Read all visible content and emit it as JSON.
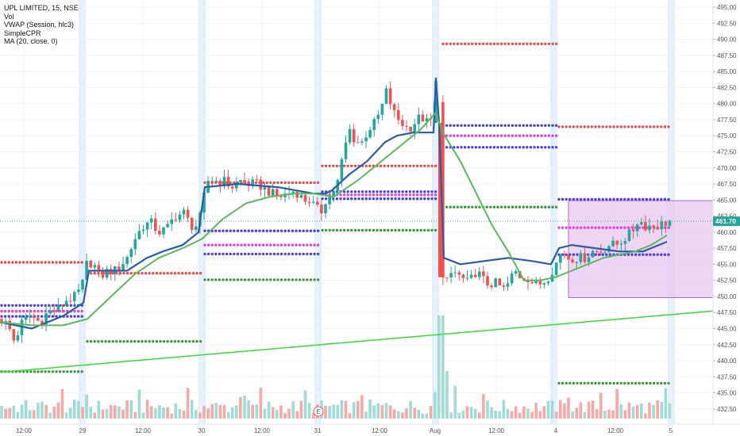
{
  "legend": {
    "title": "UPL LIMITED, 15, NSE",
    "items": [
      "Vol",
      "VWAP (Session, hlc3)",
      "SimpleCPR",
      "MA (20, close, 0)"
    ]
  },
  "colors": {
    "up": "#26a69a",
    "down": "#ef5350",
    "vwap": "#2a5caa",
    "ma": "#5cb85c",
    "trendline": "#33dd33",
    "cpr_red": "#e74c4c",
    "cpr_blue": "#4a3fe0",
    "cpr_magenta": "#e040e0",
    "cpr_green": "#3a9a3a",
    "box_fill": "#e6c3ee",
    "box_stroke": "#a050b0",
    "price_tag": "#26a69a"
  },
  "chart_data": {
    "type": "candlestick",
    "y_range": [
      431.0,
      495.5
    ],
    "y_ticks": [
      "432.50",
      "435.00",
      "437.50",
      "440.00",
      "442.50",
      "445.00",
      "447.50",
      "450.00",
      "452.50",
      "455.00",
      "457.50",
      "460.00",
      "462.50",
      "465.00",
      "467.50",
      "470.00",
      "472.50",
      "475.00",
      "477.50",
      "480.00",
      "482.50",
      "485.00",
      "487.50",
      "490.00",
      "492.50",
      "495.00"
    ],
    "x_labels": [
      "12:00",
      "29",
      "12:00",
      "30",
      "12:00",
      "31",
      "12:00",
      "Aug",
      "12:00",
      "4",
      "12:00",
      "5"
    ],
    "last_price": "461.70",
    "event_marker": "E",
    "price_path": [
      [
        0,
        446.5
      ],
      [
        10,
        445.5
      ],
      [
        18,
        443
      ],
      [
        28,
        446
      ],
      [
        38,
        447
      ],
      [
        50,
        446
      ],
      [
        60,
        447.5
      ],
      [
        72,
        448
      ],
      [
        84,
        449.5
      ],
      [
        96,
        450
      ],
      [
        104,
        452
      ],
      [
        110,
        455.5
      ],
      [
        118,
        455
      ],
      [
        126,
        453
      ],
      [
        136,
        454
      ],
      [
        146,
        454
      ],
      [
        160,
        456
      ],
      [
        170,
        459
      ],
      [
        180,
        461
      ],
      [
        190,
        461.5
      ],
      [
        200,
        460
      ],
      [
        210,
        460.5
      ],
      [
        220,
        462.5
      ],
      [
        232,
        463
      ],
      [
        240,
        461
      ],
      [
        250,
        461
      ],
      [
        256,
        465
      ],
      [
        262,
        468
      ],
      [
        272,
        468
      ],
      [
        282,
        468
      ],
      [
        292,
        467
      ],
      [
        302,
        468
      ],
      [
        312,
        467.5
      ],
      [
        322,
        467.5
      ],
      [
        332,
        467
      ],
      [
        342,
        466
      ],
      [
        352,
        465.5
      ],
      [
        362,
        466
      ],
      [
        372,
        466.5
      ],
      [
        382,
        465
      ],
      [
        390,
        465
      ],
      [
        396,
        464
      ],
      [
        404,
        463
      ],
      [
        410,
        465
      ],
      [
        418,
        466
      ],
      [
        426,
        468
      ],
      [
        432,
        472
      ],
      [
        440,
        476
      ],
      [
        448,
        474
      ],
      [
        456,
        474
      ],
      [
        464,
        476
      ],
      [
        472,
        477
      ],
      [
        480,
        479
      ],
      [
        486,
        482
      ],
      [
        492,
        480
      ],
      [
        498,
        478
      ],
      [
        506,
        477
      ],
      [
        514,
        476
      ],
      [
        522,
        477
      ],
      [
        530,
        478
      ],
      [
        538,
        477
      ],
      [
        544,
        477.5
      ],
      [
        548,
        480
      ],
      [
        552,
        475
      ],
      [
        556,
        453
      ],
      [
        562,
        452
      ],
      [
        570,
        454
      ],
      [
        580,
        453
      ],
      [
        590,
        452
      ],
      [
        600,
        454
      ],
      [
        612,
        452
      ],
      [
        624,
        452
      ],
      [
        636,
        451
      ],
      [
        648,
        454
      ],
      [
        656,
        453
      ],
      [
        664,
        453
      ],
      [
        672,
        452
      ],
      [
        682,
        452
      ],
      [
        690,
        453
      ],
      [
        700,
        455
      ],
      [
        708,
        457
      ],
      [
        716,
        456
      ],
      [
        726,
        456
      ],
      [
        736,
        456
      ],
      [
        746,
        457
      ],
      [
        756,
        457
      ],
      [
        766,
        458
      ],
      [
        776,
        458
      ],
      [
        786,
        459
      ],
      [
        796,
        460
      ],
      [
        804,
        462
      ],
      [
        812,
        461
      ],
      [
        820,
        461
      ],
      [
        830,
        461
      ],
      [
        842,
        461.7
      ]
    ],
    "vwap": [
      [
        0,
        446
      ],
      [
        40,
        445
      ],
      [
        80,
        447
      ],
      [
        105,
        449
      ],
      [
        112,
        454
      ],
      [
        135,
        454
      ],
      [
        160,
        454
      ],
      [
        185,
        456
      ],
      [
        205,
        457
      ],
      [
        230,
        458
      ],
      [
        250,
        460
      ],
      [
        258,
        467
      ],
      [
        300,
        467.5
      ],
      [
        350,
        467
      ],
      [
        395,
        466
      ],
      [
        404,
        466
      ],
      [
        410,
        466
      ],
      [
        418,
        466.5
      ],
      [
        440,
        469
      ],
      [
        462,
        471
      ],
      [
        485,
        474
      ],
      [
        500,
        475
      ],
      [
        520,
        475.5
      ],
      [
        546,
        475.5
      ],
      [
        549,
        484
      ],
      [
        553,
        477
      ],
      [
        559,
        456
      ],
      [
        580,
        455
      ],
      [
        610,
        455.5
      ],
      [
        640,
        456
      ],
      [
        670,
        455.5
      ],
      [
        694,
        455
      ],
      [
        704,
        457.5
      ],
      [
        720,
        458
      ],
      [
        750,
        457.5
      ],
      [
        780,
        457
      ],
      [
        810,
        457
      ],
      [
        840,
        458.5
      ]
    ],
    "ma": [
      [
        0,
        446
      ],
      [
        40,
        445.5
      ],
      [
        80,
        445.5
      ],
      [
        110,
        446.5
      ],
      [
        140,
        450
      ],
      [
        170,
        453.5
      ],
      [
        200,
        456
      ],
      [
        230,
        457.5
      ],
      [
        255,
        459
      ],
      [
        280,
        462
      ],
      [
        310,
        464.5
      ],
      [
        340,
        465.5
      ],
      [
        370,
        466
      ],
      [
        395,
        466
      ],
      [
        420,
        465.5
      ],
      [
        450,
        468
      ],
      [
        480,
        471
      ],
      [
        510,
        474
      ],
      [
        530,
        476
      ],
      [
        548,
        478.5
      ],
      [
        560,
        475
      ],
      [
        580,
        471
      ],
      [
        600,
        466
      ],
      [
        620,
        461
      ],
      [
        640,
        457
      ],
      [
        660,
        452.5
      ],
      [
        680,
        452.5
      ],
      [
        700,
        453
      ],
      [
        720,
        454
      ],
      [
        740,
        455
      ],
      [
        760,
        456
      ],
      [
        780,
        456.5
      ],
      [
        800,
        457
      ],
      [
        820,
        458
      ],
      [
        840,
        459.5
      ]
    ],
    "trendline": [
      [
        0,
        438.2
      ],
      [
        932,
        448.1
      ]
    ],
    "cpr_levels": [
      {
        "x0": 0,
        "x1": 108,
        "y": 455.3,
        "color": "red"
      },
      {
        "x0": 0,
        "x1": 108,
        "y": 448.6,
        "color": "blue"
      },
      {
        "x0": 0,
        "x1": 108,
        "y": 447.7,
        "color": "magenta"
      },
      {
        "x0": 0,
        "x1": 108,
        "y": 446.9,
        "color": "blue"
      },
      {
        "x0": 0,
        "x1": 108,
        "y": 438.3,
        "color": "green"
      },
      {
        "x0": 108,
        "x1": 256,
        "y": 453.6,
        "color": "red"
      },
      {
        "x0": 108,
        "x1": 256,
        "y": 443.0,
        "color": "green"
      },
      {
        "x0": 256,
        "x1": 404,
        "y": 467.7,
        "color": "red"
      },
      {
        "x0": 256,
        "x1": 404,
        "y": 460.2,
        "color": "blue"
      },
      {
        "x0": 256,
        "x1": 404,
        "y": 458.0,
        "color": "magenta"
      },
      {
        "x0": 256,
        "x1": 404,
        "y": 456.6,
        "color": "blue"
      },
      {
        "x0": 256,
        "x1": 404,
        "y": 452.6,
        "color": "green"
      },
      {
        "x0": 404,
        "x1": 550,
        "y": 470.3,
        "color": "red"
      },
      {
        "x0": 404,
        "x1": 550,
        "y": 466.3,
        "color": "blue"
      },
      {
        "x0": 404,
        "x1": 550,
        "y": 465.8,
        "color": "magenta"
      },
      {
        "x0": 404,
        "x1": 550,
        "y": 465.2,
        "color": "blue"
      },
      {
        "x0": 404,
        "x1": 550,
        "y": 460.3,
        "color": "green"
      },
      {
        "x0": 556,
        "x1": 702,
        "y": 489.3,
        "color": "red"
      },
      {
        "x0": 556,
        "x1": 702,
        "y": 476.6,
        "color": "blue"
      },
      {
        "x0": 556,
        "x1": 702,
        "y": 475.0,
        "color": "magenta"
      },
      {
        "x0": 556,
        "x1": 702,
        "y": 473.2,
        "color": "blue"
      },
      {
        "x0": 556,
        "x1": 702,
        "y": 463.9,
        "color": "green"
      },
      {
        "x0": 702,
        "x1": 845,
        "y": 476.4,
        "color": "red"
      },
      {
        "x0": 702,
        "x1": 845,
        "y": 465.1,
        "color": "blue"
      },
      {
        "x0": 702,
        "x1": 845,
        "y": 460.7,
        "color": "magenta"
      },
      {
        "x0": 702,
        "x1": 845,
        "y": 456.5,
        "color": "blue"
      },
      {
        "x0": 702,
        "x1": 845,
        "y": 436.5,
        "color": "green"
      }
    ],
    "range_box": {
      "y_high": 464.9,
      "y_low": 449.8
    },
    "session_bands": [
      103,
      254,
      400,
      548,
      697,
      845
    ]
  }
}
